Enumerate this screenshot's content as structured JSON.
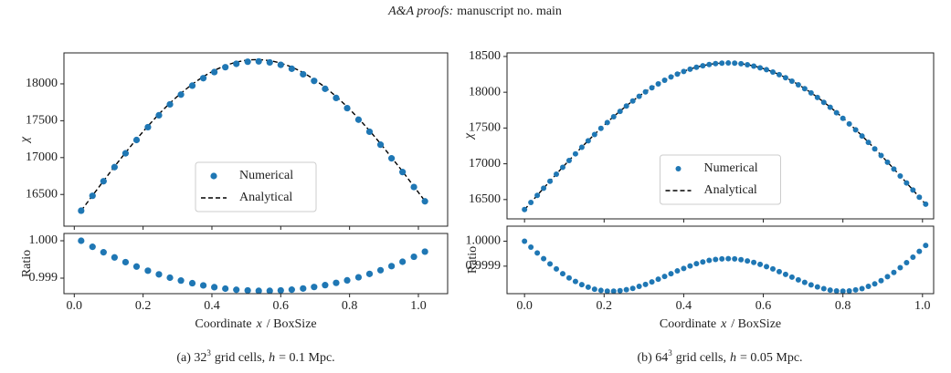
{
  "header": {
    "journal": "A&A proofs:",
    "manuscript": "manuscript no. main"
  },
  "captions": [
    {
      "label": "(a) 32",
      "exponent": "3",
      "text": "grid cells,",
      "variable": "h",
      "rest": "= 0.1 Mpc."
    },
    {
      "label": "(b) 64",
      "exponent": "3",
      "text": "grid cells,",
      "variable": "h",
      "rest": "= 0.05 Mpc."
    }
  ],
  "chart_data": [
    {
      "type": "scatter",
      "ylabel": "χ",
      "legend": "lower center",
      "x": [
        0.02,
        0.053,
        0.085,
        0.117,
        0.149,
        0.181,
        0.214,
        0.246,
        0.278,
        0.31,
        0.343,
        0.375,
        0.407,
        0.439,
        0.471,
        0.504,
        0.536,
        0.568,
        0.6,
        0.632,
        0.665,
        0.697,
        0.729,
        0.761,
        0.793,
        0.826,
        0.858,
        0.89,
        0.922,
        0.954,
        0.987,
        1.019
      ],
      "series": [
        {
          "name": "Numerical",
          "color": "#1f77b4",
          "marker": "circle",
          "values": [
            16280,
            16482,
            16679,
            16871,
            17058,
            17239,
            17413,
            17574,
            17722,
            17854,
            17976,
            18077,
            18160,
            18226,
            18272,
            18300,
            18305,
            18291,
            18258,
            18205,
            18130,
            18040,
            17933,
            17809,
            17671,
            17514,
            17351,
            17175,
            16990,
            16804,
            16601,
            16407
          ]
        },
        {
          "name": "Analytical",
          "color": "#000000",
          "linestyle": "dashed",
          "values": [
            16280,
            16485,
            16684,
            16879,
            17068,
            17251,
            17427,
            17590,
            17740,
            17873,
            17996,
            18099,
            18183,
            18249,
            18296,
            18324,
            18330,
            18316,
            18282,
            18229,
            18153,
            18062,
            17954,
            17829,
            17690,
            17531,
            17366,
            17189,
            17002,
            16813,
            16608,
            16412
          ]
        }
      ],
      "xlim": [
        -0.03,
        1.085
      ],
      "xticks": [
        0,
        0.2,
        0.4,
        0.6,
        0.8,
        1
      ],
      "ylim": [
        16070,
        18420
      ],
      "yticks": [
        16500,
        17000,
        17500,
        18000
      ]
    },
    {
      "type": "scatter",
      "ylabel": "Ratio",
      "xlabel": {
        "text": "Coordinate",
        "variable": "x",
        "unit": "/ BoxSize"
      },
      "x": [
        0.02,
        0.053,
        0.085,
        0.117,
        0.149,
        0.181,
        0.214,
        0.246,
        0.278,
        0.31,
        0.343,
        0.375,
        0.407,
        0.439,
        0.471,
        0.504,
        0.536,
        0.568,
        0.6,
        0.632,
        0.665,
        0.697,
        0.729,
        0.761,
        0.793,
        0.826,
        0.858,
        0.89,
        0.922,
        0.954,
        0.987,
        1.019
      ],
      "values": [
        1.0,
        0.999838,
        0.999692,
        0.999554,
        0.999428,
        0.99931,
        0.999199,
        0.999101,
        0.999012,
        0.998935,
        0.998865,
        0.998806,
        0.998758,
        0.998719,
        0.998689,
        0.998671,
        0.998661,
        0.998661,
        0.998672,
        0.998692,
        0.998723,
        0.998763,
        0.998813,
        0.998873,
        0.998941,
        0.999023,
        0.999113,
        0.999212,
        0.999321,
        0.999439,
        0.999571,
        0.999709
      ],
      "color": "#1f77b4",
      "xlim": [
        -0.03,
        1.085
      ],
      "xticks": [
        {
          "value": 0,
          "label": "0.0"
        },
        0.2,
        0.4,
        0.6,
        0.8,
        {
          "value": 1,
          "label": "1.0"
        }
      ],
      "ylim": [
        0.998585,
        1.000195
      ],
      "yticks": [
        {
          "value": 1,
          "label": "1.000"
        },
        0.999
      ]
    },
    {
      "type": "scatter",
      "ylabel": "χ",
      "legend": "lower center",
      "x": [
        0,
        0.016,
        0.032,
        0.048,
        0.064,
        0.08,
        0.096,
        0.112,
        0.128,
        0.144,
        0.16,
        0.176,
        0.192,
        0.208,
        0.224,
        0.24,
        0.256,
        0.272,
        0.288,
        0.304,
        0.32,
        0.336,
        0.352,
        0.368,
        0.384,
        0.4,
        0.416,
        0.432,
        0.448,
        0.464,
        0.48,
        0.496,
        0.512,
        0.528,
        0.544,
        0.56,
        0.576,
        0.592,
        0.608,
        0.624,
        0.64,
        0.656,
        0.672,
        0.688,
        0.704,
        0.72,
        0.736,
        0.752,
        0.768,
        0.784,
        0.8,
        0.816,
        0.832,
        0.848,
        0.864,
        0.88,
        0.896,
        0.912,
        0.928,
        0.944,
        0.96,
        0.976,
        0.992,
        1.008
      ],
      "series": [
        {
          "name": "Numerical",
          "color": "#1f77b4",
          "marker": "circle",
          "values": [
            16360,
            16459,
            16558,
            16658,
            16756,
            16854,
            16951,
            17046,
            17139,
            17231,
            17322,
            17409,
            17495,
            17577,
            17657,
            17733,
            17807,
            17877,
            17943,
            18005,
            18063,
            18117,
            18167,
            18213,
            18254,
            18291,
            18322,
            18349,
            18370,
            18388,
            18400,
            18407,
            18409,
            18406,
            18398,
            18385,
            18365,
            18342,
            18315,
            18282,
            18245,
            18203,
            18155,
            18104,
            18049,
            17990,
            17927,
            17859,
            17790,
            17714,
            17636,
            17557,
            17474,
            17388,
            17299,
            17208,
            17116,
            17022,
            16927,
            16829,
            16732,
            16633,
            16533,
            16435
          ]
        },
        {
          "name": "Analytical",
          "color": "#000000",
          "linestyle": "dashed",
          "values": [
            16360,
            16459,
            16559,
            16659,
            16758,
            16856,
            16953,
            17048,
            17142,
            17234,
            17325,
            17412,
            17498,
            17581,
            17661,
            17737,
            17810,
            17880,
            17946,
            18008,
            18066,
            18120,
            18170,
            18215,
            18256,
            18293,
            18324,
            18351,
            18372,
            18389,
            18401,
            18408,
            18410,
            18407,
            18399,
            18386,
            18367,
            18344,
            18317,
            18284,
            18247,
            18205,
            18158,
            18107,
            18052,
            17993,
            17930,
            17862,
            17793,
            17718,
            17640,
            17560,
            17477,
            17391,
            17302,
            17211,
            17119,
            17024,
            16929,
            16831,
            16733,
            16634,
            16534,
            16435
          ]
        }
      ],
      "xlim": [
        -0.044,
        1.028
      ],
      "xticks": [
        0,
        0.2,
        0.4,
        0.6,
        0.8,
        1
      ],
      "ylim": [
        16230,
        18550
      ],
      "yticks": [
        16500,
        17000,
        17500,
        18000,
        18500
      ]
    },
    {
      "type": "scatter",
      "ylabel": "Ratio",
      "xlabel": {
        "text": "Coordinate",
        "variable": "x",
        "unit": "/ BoxSize"
      },
      "x": [
        0,
        0.016,
        0.032,
        0.048,
        0.064,
        0.08,
        0.096,
        0.112,
        0.128,
        0.144,
        0.16,
        0.176,
        0.192,
        0.208,
        0.224,
        0.24,
        0.256,
        0.272,
        0.288,
        0.304,
        0.32,
        0.336,
        0.352,
        0.368,
        0.384,
        0.4,
        0.416,
        0.432,
        0.448,
        0.464,
        0.48,
        0.496,
        0.512,
        0.528,
        0.544,
        0.56,
        0.576,
        0.592,
        0.608,
        0.624,
        0.64,
        0.656,
        0.672,
        0.688,
        0.704,
        0.72,
        0.736,
        0.752,
        0.768,
        0.784,
        0.8,
        0.816,
        0.832,
        0.848,
        0.864,
        0.88,
        0.896,
        0.912,
        0.928,
        0.944,
        0.96,
        0.976,
        0.992,
        1.008
      ],
      "values": [
        1.0,
        0.999976,
        0.999953,
        0.99993,
        0.999909,
        0.999889,
        0.99987,
        0.999853,
        0.999839,
        0.999826,
        0.999816,
        0.999808,
        0.999803,
        0.9998,
        0.9998,
        0.999802,
        0.999806,
        0.999811,
        0.999819,
        0.999827,
        0.999837,
        0.999848,
        0.999859,
        0.99987,
        0.999881,
        0.999891,
        0.999901,
        0.99991,
        0.999917,
        0.999923,
        0.999927,
        0.999929,
        0.99993,
        0.999929,
        0.999926,
        0.999921,
        0.999915,
        0.999907,
        0.999898,
        0.999889,
        0.999878,
        0.999867,
        0.999856,
        0.999845,
        0.999835,
        0.999825,
        0.999817,
        0.99981,
        0.999804,
        0.999801,
        0.9998,
        0.999801,
        0.999805,
        0.99981,
        0.999819,
        0.999829,
        0.999842,
        0.999858,
        0.999875,
        0.999894,
        0.999914,
        0.999936,
        0.999959,
        0.999983
      ],
      "color": "#1f77b4",
      "xlim": [
        -0.044,
        1.028
      ],
      "xticks": [
        {
          "value": 0,
          "label": "0.0"
        },
        0.2,
        0.4,
        0.6,
        0.8,
        {
          "value": 1,
          "label": "1.0"
        }
      ],
      "ylim": [
        0.99979,
        1.00006
      ],
      "yticks": [
        {
          "value": 1,
          "label": "1.0000"
        },
        0.9999
      ]
    }
  ]
}
